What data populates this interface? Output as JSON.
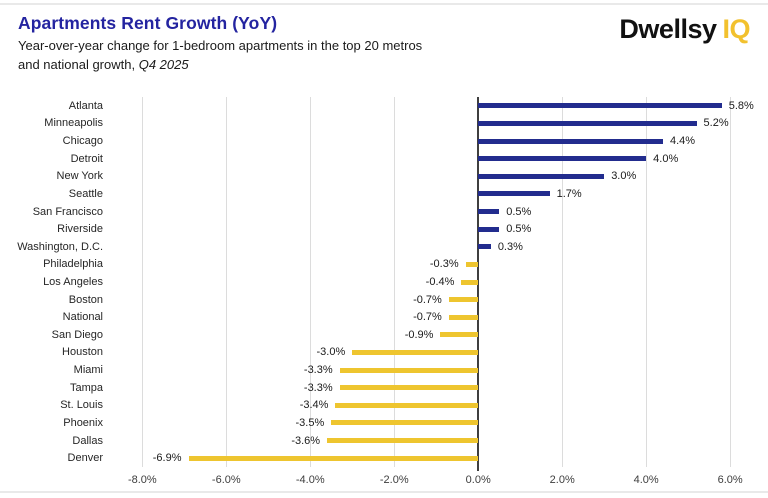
{
  "header": {
    "title": "Apartments Rent Growth (YoY)",
    "subtitle_line1": "Year-over-year change for 1-bedroom apartments in the top 20 metros",
    "subtitle_line2_prefix": "and national growth, ",
    "subtitle_line2_italic": "Q4 2025",
    "logo_word": "Dwellsy",
    "logo_suffix": "IQ"
  },
  "colors": {
    "positive_bar": "#222C8E",
    "negative_bar": "#EEC52F",
    "title_blue": "#2424A0",
    "logo_yellow": "#F2C12E",
    "gridline": "#DCDCDC",
    "zero_line": "#3F3F3F"
  },
  "chart_data": {
    "type": "bar",
    "orientation": "horizontal",
    "title": "Apartments Rent Growth (YoY)",
    "categories": [
      "Atlanta",
      "Minneapolis",
      "Chicago",
      "Detroit",
      "New York",
      "Seattle",
      "San Francisco",
      "Riverside",
      "Washington, D.C.",
      "Philadelphia",
      "Los Angeles",
      "Boston",
      "National",
      "San Diego",
      "Houston",
      "Miami",
      "Tampa",
      "St. Louis",
      "Phoenix",
      "Dallas",
      "Denver"
    ],
    "values": [
      5.8,
      5.2,
      4.4,
      4.0,
      3.0,
      1.7,
      0.5,
      0.5,
      0.3,
      -0.3,
      -0.4,
      -0.7,
      -0.7,
      -0.9,
      -3.0,
      -3.3,
      -3.3,
      -3.4,
      -3.5,
      -3.6,
      -6.9
    ],
    "value_labels": [
      "5.8%",
      "5.2%",
      "4.4%",
      "4.0%",
      "3.0%",
      "1.7%",
      "0.5%",
      "0.5%",
      "0.3%",
      "-0.3%",
      "-0.4%",
      "-0.7%",
      "-0.7%",
      "-0.9%",
      "-3.0%",
      "-3.3%",
      "-3.3%",
      "-3.4%",
      "-3.5%",
      "-3.6%",
      "-6.9%"
    ],
    "x_ticks": [
      -8,
      -6,
      -4,
      -2,
      0,
      2,
      4,
      6
    ],
    "x_tick_labels": [
      "-8.0%",
      "-6.0%",
      "-4.0%",
      "-2.0%",
      "0.0%",
      "2.0%",
      "4.0%",
      "6.0%"
    ],
    "xlim": [
      -8.77,
      6.83
    ],
    "grid": "vertical-only",
    "legend": "none",
    "bar_colors_rule": "positive=navy, negative=gold"
  }
}
